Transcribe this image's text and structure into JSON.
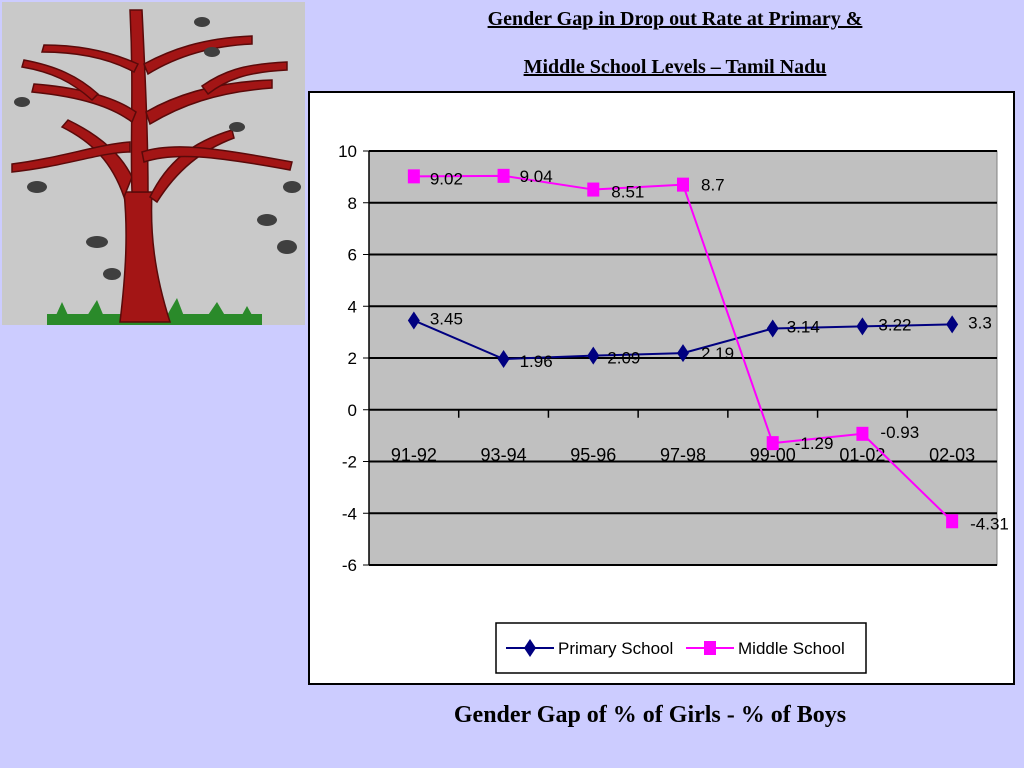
{
  "title_lines": [
    "Gender Gap in Drop out Rate at Primary &",
    "Middle School Levels – Tamil Nadu"
  ],
  "caption": "Gender Gap of % of Girls  - % of  Boys",
  "colors": {
    "plot_bg": "#c0c0c0",
    "primary": "#000080",
    "middle": "#ff00ff",
    "tree_trunk": "#a31515",
    "grass": "#2a8a2a"
  },
  "chart_data": {
    "type": "line",
    "categories": [
      "91-92",
      "93-94",
      "95-96",
      "97-98",
      "99-00",
      "01-02",
      "02-03"
    ],
    "y_ticks": [
      "10",
      "8",
      "6",
      "4",
      "2",
      "0",
      "-2",
      "-4",
      "-6"
    ],
    "ylim": [
      -6,
      10
    ],
    "grid": true,
    "legend_position": "bottom",
    "series": [
      {
        "name": "Primary School",
        "values": [
          3.45,
          1.96,
          2.09,
          2.19,
          3.14,
          3.22,
          3.3
        ],
        "labels": [
          "3.45",
          "1.96",
          "2.09",
          "2.19",
          "3.14",
          "3.22",
          "3.3"
        ],
        "marker": "diamond"
      },
      {
        "name": "Middle School",
        "values": [
          9.02,
          9.04,
          8.51,
          8.7,
          -1.29,
          -0.93,
          -4.31
        ],
        "labels": [
          "9.02",
          "9.04",
          "8.51",
          "8.7",
          "-1.29",
          "-0.93",
          "-4.31"
        ],
        "marker": "square"
      }
    ]
  }
}
